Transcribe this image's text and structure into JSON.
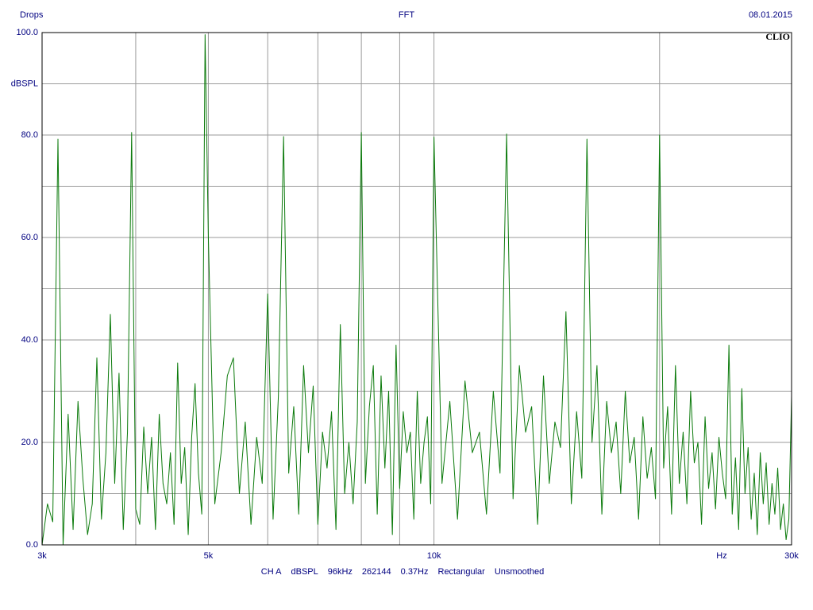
{
  "chart_data": {
    "type": "line",
    "title": "FFT",
    "name": "Drops",
    "date": "08.01.2015",
    "brand": "CLIO",
    "y_label": "dBSPL",
    "x_label": "Hz",
    "info": [
      "CH A",
      "dBSPL",
      "96kHz",
      "262144",
      "0.37Hz",
      "Rectangular",
      "Unsmoothed"
    ],
    "xscale": "log",
    "grid": true,
    "color": "#0b7a0b",
    "xlim": [
      3000,
      30000
    ],
    "ylim": [
      0,
      100
    ],
    "xticks": [
      {
        "value": 3000,
        "label": "3k"
      },
      {
        "value": 5000,
        "label": "5k"
      },
      {
        "value": 10000,
        "label": "10k"
      },
      {
        "value": 30000,
        "label": "30k"
      }
    ],
    "xminor": [
      4000,
      6000,
      7000,
      8000,
      9000,
      20000
    ],
    "yticks": [
      {
        "value": 0,
        "label": "0.0"
      },
      {
        "value": 20,
        "label": "20.0"
      },
      {
        "value": 40,
        "label": "40.0"
      },
      {
        "value": 60,
        "label": "60.0"
      },
      {
        "value": 80,
        "label": "80.0"
      },
      {
        "value": 100,
        "label": "100.0"
      }
    ],
    "yminor": [
      10,
      30,
      50,
      70,
      90
    ],
    "x": [
      3000,
      3050,
      3100,
      3150,
      3200,
      3250,
      3300,
      3350,
      3400,
      3450,
      3500,
      3550,
      3600,
      3650,
      3700,
      3750,
      3800,
      3850,
      3900,
      3950,
      4000,
      4050,
      4100,
      4150,
      4200,
      4250,
      4300,
      4350,
      4400,
      4450,
      4500,
      4550,
      4600,
      4650,
      4700,
      4750,
      4800,
      4850,
      4900,
      4950,
      5000,
      5100,
      5200,
      5300,
      5400,
      5500,
      5600,
      5700,
      5800,
      5900,
      6000,
      6100,
      6200,
      6300,
      6400,
      6500,
      6600,
      6700,
      6800,
      6900,
      7000,
      7100,
      7200,
      7300,
      7400,
      7500,
      7600,
      7700,
      7800,
      7900,
      8000,
      8100,
      8200,
      8300,
      8400,
      8500,
      8600,
      8700,
      8800,
      8900,
      9000,
      9100,
      9200,
      9300,
      9400,
      9500,
      9600,
      9700,
      9800,
      9900,
      10000,
      10250,
      10500,
      10750,
      11000,
      11250,
      11500,
      11750,
      12000,
      12250,
      12500,
      12750,
      13000,
      13250,
      13500,
      13750,
      14000,
      14250,
      14500,
      14750,
      15000,
      15250,
      15500,
      15750,
      16000,
      16250,
      16500,
      16750,
      17000,
      17250,
      17500,
      17750,
      18000,
      18250,
      18500,
      18750,
      19000,
      19250,
      19500,
      19750,
      20000,
      20250,
      20500,
      20750,
      21000,
      21250,
      21500,
      21750,
      22000,
      22250,
      22500,
      22750,
      23000,
      23250,
      23500,
      23750,
      24000,
      24250,
      24500,
      24750,
      25000,
      25250,
      25500,
      25750,
      26000,
      26250,
      26500,
      26750,
      27000,
      27250,
      27500,
      27750,
      28000,
      28250,
      28500,
      28750,
      29000,
      29250,
      29500,
      29750,
      30000
    ],
    "values": [
      0,
      8,
      4.5,
      79.2,
      0,
      25.5,
      3,
      28,
      13,
      2,
      8,
      36.5,
      5,
      18,
      45,
      12,
      33.5,
      3,
      22,
      80.5,
      7,
      4,
      23,
      10,
      21,
      3,
      25.5,
      12,
      8,
      18,
      4,
      35.5,
      12,
      19,
      2,
      21,
      31.5,
      14,
      6,
      99.6,
      60,
      8,
      18,
      33,
      36.5,
      10,
      24,
      4,
      21,
      12,
      49,
      5,
      29,
      79.7,
      14,
      27,
      6,
      35,
      18,
      31,
      4,
      22,
      15,
      26,
      3,
      43,
      10,
      20,
      8,
      24,
      80.5,
      12,
      27,
      35,
      6,
      33,
      15,
      30,
      2,
      39,
      11,
      26,
      18,
      22,
      5,
      30,
      12,
      20,
      25,
      8,
      79.6,
      12,
      28,
      5,
      32,
      18,
      22,
      6,
      30,
      14,
      80.2,
      9,
      35,
      22,
      27,
      4,
      33,
      12,
      24,
      19,
      45.5,
      8,
      26,
      13,
      79.2,
      20,
      35,
      6,
      28,
      18,
      24,
      10,
      30,
      16,
      21,
      5,
      25,
      13,
      19,
      9,
      80,
      15,
      27,
      6,
      35,
      12,
      22,
      8,
      30,
      16,
      20,
      4,
      25,
      11,
      18,
      7,
      21,
      14,
      9,
      39,
      6,
      17,
      3,
      30.5,
      10,
      19,
      5,
      14,
      2,
      18,
      8,
      16,
      4,
      12,
      6,
      15,
      3,
      8,
      1,
      5,
      29
    ]
  }
}
